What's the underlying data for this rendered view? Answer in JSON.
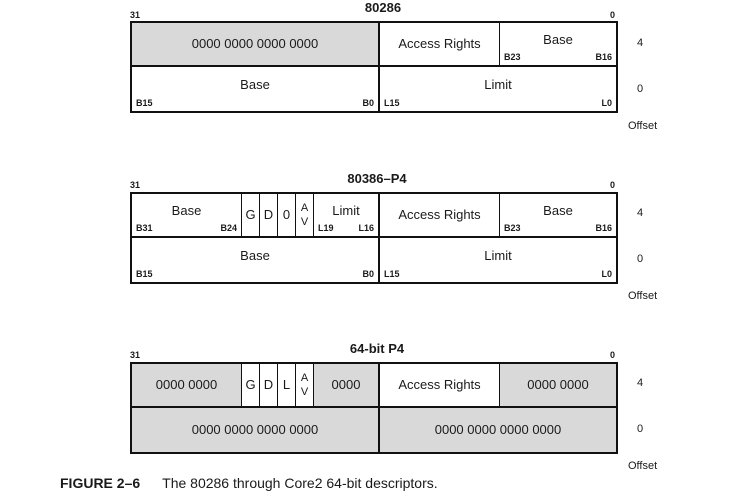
{
  "caption": {
    "label": "FIGURE 2–6",
    "text": "The 80286 through Core2 64-bit descriptors."
  },
  "offset_label": "Offset",
  "msb": "31",
  "lsb": "0",
  "d1": {
    "title": "80286",
    "top": {
      "zero": "0000 0000 0000 0000",
      "access": "Access Rights",
      "base": "Base",
      "base_l": "B23",
      "base_r": "B16"
    },
    "bot": {
      "base": "Base",
      "base_l": "B15",
      "base_r": "B0",
      "limit": "Limit",
      "limit_l": "L15",
      "limit_r": "L0"
    },
    "off_top": "4",
    "off_bot": "0"
  },
  "d2": {
    "title": "80386–P4",
    "top": {
      "base": "Base",
      "base_l": "B31",
      "base_r": "B24",
      "g": "G",
      "d": "D",
      "z": "0",
      "av_a": "A",
      "av_v": "V",
      "limit": "Limit",
      "limit_l": "L19",
      "limit_r": "L16",
      "access": "Access Rights",
      "base2": "Base",
      "base2_l": "B23",
      "base2_r": "B16"
    },
    "bot": {
      "base": "Base",
      "base_l": "B15",
      "base_r": "B0",
      "limit": "Limit",
      "limit_l": "L15",
      "limit_r": "L0"
    },
    "off_top": "4",
    "off_bot": "0"
  },
  "d3": {
    "title": "64-bit P4",
    "top": {
      "zero1": "0000 0000",
      "g": "G",
      "d": "D",
      "l": "L",
      "av_a": "A",
      "av_v": "V",
      "zero2": "0000",
      "access": "Access Rights",
      "zero3": "0000 0000"
    },
    "bot": {
      "zero_left": "0000 0000 0000 0000",
      "zero_right": "0000 0000 0000 0000"
    },
    "off_top": "4",
    "off_bot": "0"
  }
}
